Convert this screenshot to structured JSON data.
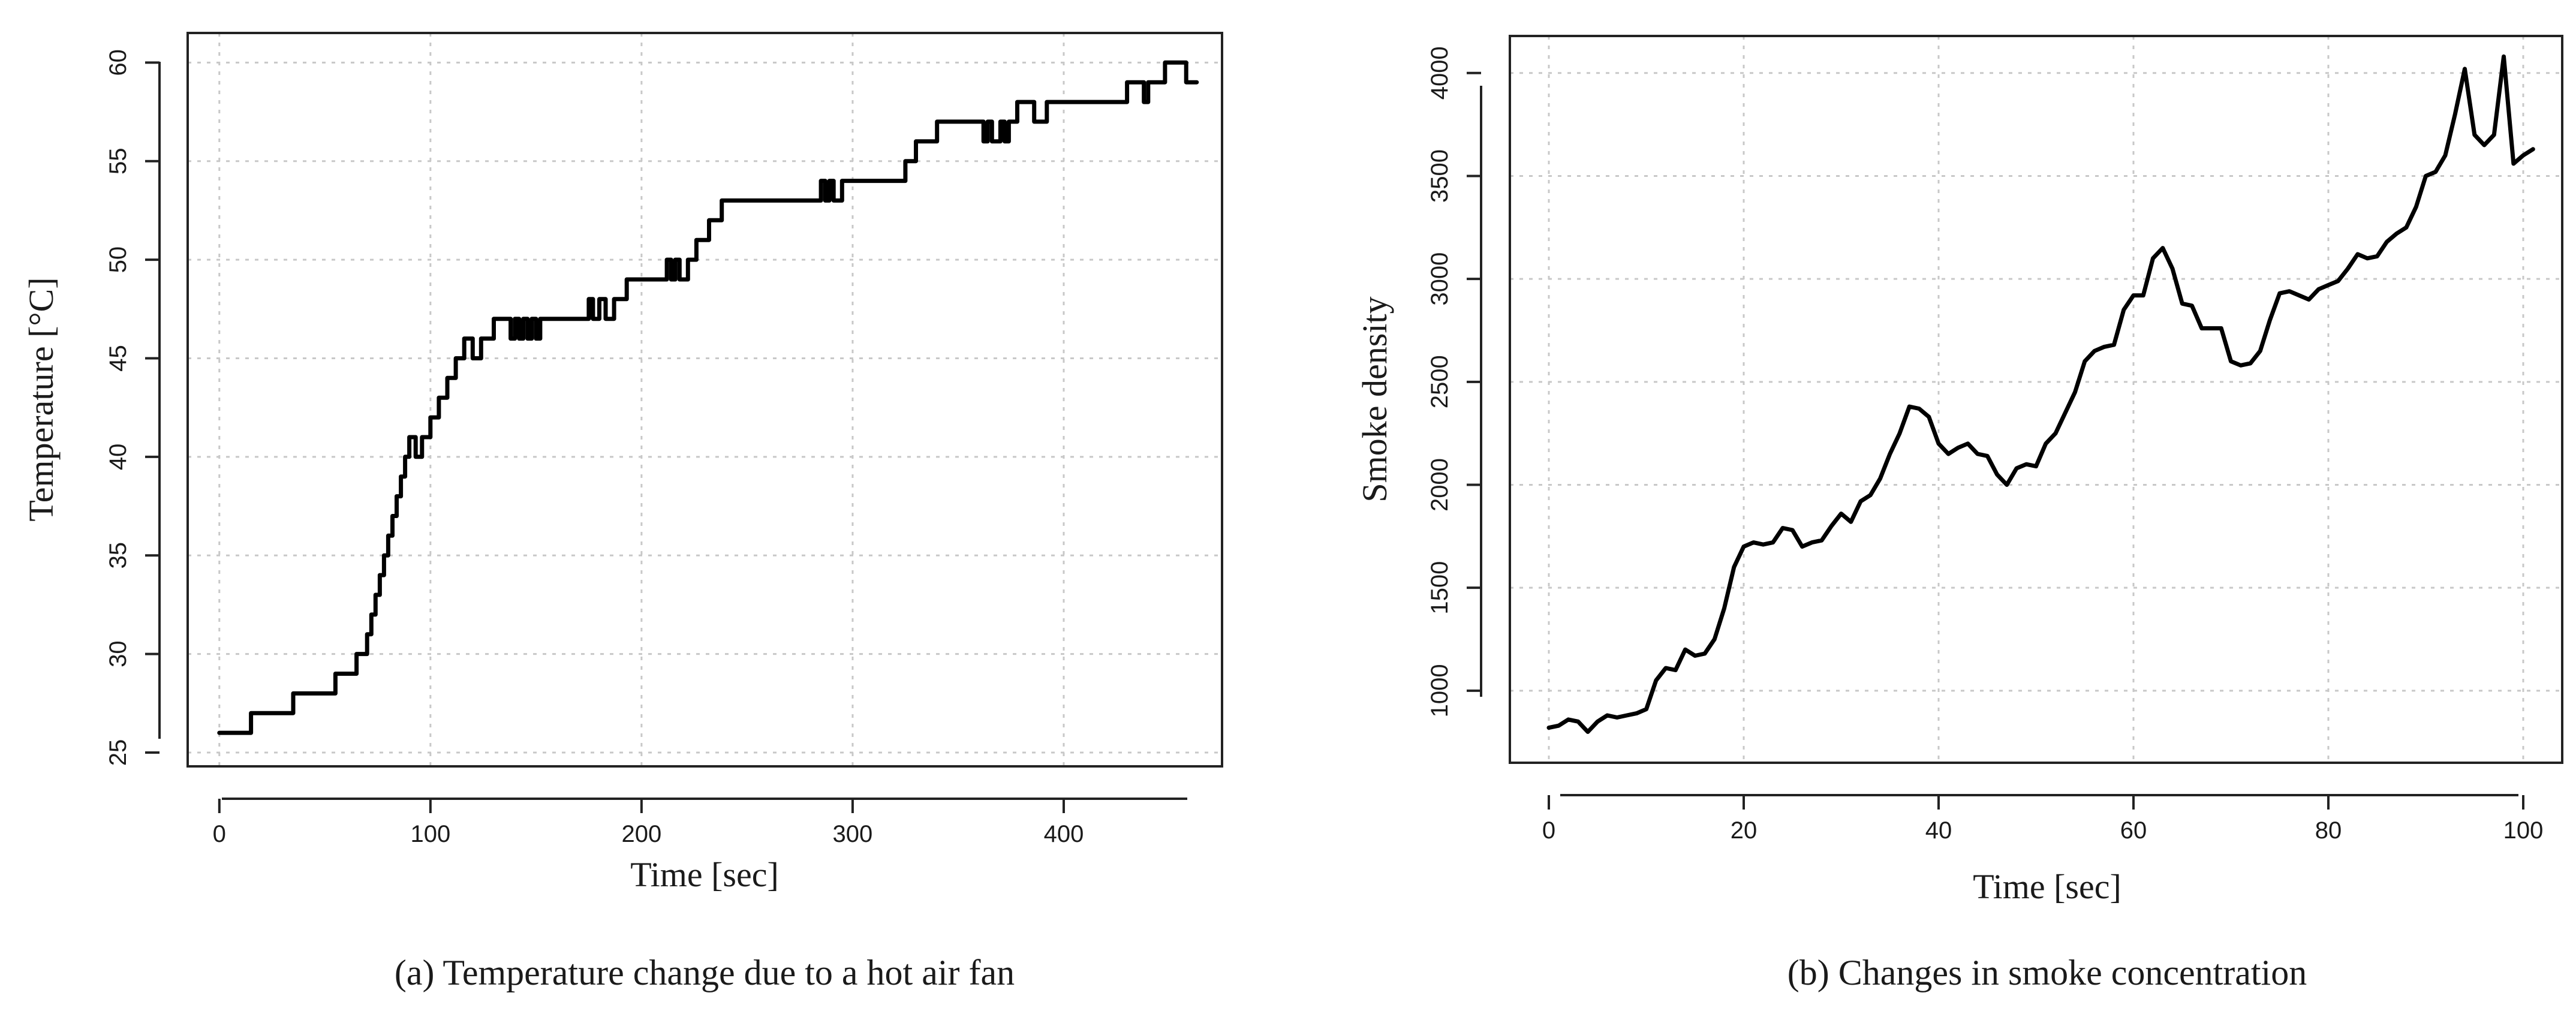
{
  "chart_data": [
    {
      "type": "line",
      "caption": "(a) Temperature change due to a hot air fan",
      "xlabel": "Time [sec]",
      "ylabel": "Temperature [°C]",
      "xlim": [
        -15,
        475
      ],
      "ylim": [
        24.3,
        61.5
      ],
      "xticks": [
        0,
        100,
        200,
        300,
        400
      ],
      "yticks": [
        25,
        30,
        35,
        40,
        45,
        50,
        55,
        60
      ],
      "grid": true,
      "step": true,
      "x": [
        0,
        15,
        35,
        55,
        65,
        70,
        72,
        74,
        76,
        78,
        80,
        82,
        84,
        86,
        88,
        90,
        93,
        96,
        100,
        104,
        108,
        112,
        116,
        120,
        124,
        130,
        138,
        140,
        142,
        144,
        146,
        148,
        150,
        152,
        156,
        175,
        177,
        180,
        183,
        187,
        193,
        212,
        214,
        216,
        218,
        222,
        226,
        232,
        238,
        255,
        285,
        287,
        289,
        291,
        295,
        320,
        325,
        330,
        340,
        362,
        364,
        366,
        370,
        372,
        374,
        378,
        386,
        392,
        397,
        400,
        430,
        438,
        440,
        442,
        448,
        458,
        463
      ],
      "values": [
        26,
        27,
        28,
        29,
        30,
        31,
        32,
        33,
        34,
        35,
        36,
        37,
        38,
        39,
        40,
        41,
        40,
        41,
        42,
        43,
        44,
        45,
        46,
        45,
        46,
        47,
        46,
        47,
        46,
        47,
        46,
        47,
        46,
        47,
        47,
        48,
        47,
        48,
        47,
        48,
        49,
        50,
        49,
        50,
        49,
        50,
        51,
        52,
        53,
        53,
        54,
        53,
        54,
        53,
        54,
        54,
        55,
        56,
        57,
        56,
        57,
        56,
        57,
        56,
        57,
        58,
        57,
        58,
        58,
        58,
        59,
        58,
        59,
        59,
        60,
        59,
        59
      ]
    },
    {
      "type": "line",
      "caption": "(b) Changes in smoke concentration",
      "xlabel": "Time [sec]",
      "ylabel": "Smoke density",
      "xlim": [
        -4,
        104
      ],
      "ylim": [
        650,
        4180
      ],
      "xticks": [
        0,
        20,
        40,
        60,
        80,
        100
      ],
      "yticks": [
        1000,
        1500,
        2000,
        2500,
        3000,
        3500,
        4000
      ],
      "grid": true,
      "step": false,
      "x": [
        0,
        1,
        2,
        3,
        4,
        5,
        6,
        7,
        8,
        9,
        10,
        11,
        12,
        13,
        14,
        15,
        16,
        17,
        18,
        19,
        20,
        21,
        22,
        23,
        24,
        25,
        26,
        27,
        28,
        29,
        30,
        31,
        32,
        33,
        34,
        35,
        36,
        37,
        38,
        39,
        40,
        41,
        42,
        43,
        44,
        45,
        46,
        47,
        48,
        49,
        50,
        51,
        52,
        53,
        54,
        55,
        56,
        57,
        58,
        59,
        60,
        61,
        62,
        63,
        64,
        65,
        66,
        67,
        68,
        69,
        70,
        71,
        72,
        73,
        74,
        75,
        76,
        77,
        78,
        79,
        80,
        81,
        82,
        83,
        84,
        85,
        86,
        87,
        88,
        89,
        90,
        91,
        92,
        93,
        94,
        95,
        96,
        97,
        98,
        99,
        100,
        101
      ],
      "values": [
        820,
        830,
        860,
        850,
        800,
        850,
        880,
        870,
        880,
        890,
        910,
        1050,
        1110,
        1100,
        1200,
        1170,
        1180,
        1250,
        1400,
        1600,
        1700,
        1720,
        1710,
        1720,
        1790,
        1780,
        1700,
        1720,
        1730,
        1800,
        1860,
        1820,
        1920,
        1950,
        2030,
        2150,
        2250,
        2380,
        2370,
        2330,
        2200,
        2150,
        2180,
        2200,
        2150,
        2140,
        2050,
        2000,
        2080,
        2100,
        2090,
        2200,
        2250,
        2350,
        2450,
        2600,
        2650,
        2670,
        2680,
        2850,
        2920,
        2920,
        3100,
        3150,
        3050,
        2880,
        2870,
        2760,
        2760,
        2760,
        2600,
        2580,
        2590,
        2650,
        2800,
        2930,
        2940,
        2920,
        2900,
        2950,
        2970,
        2990,
        3050,
        3120,
        3100,
        3110,
        3180,
        3220,
        3250,
        3350,
        3500,
        3520,
        3600,
        3800,
        4020,
        3700,
        3650,
        3700,
        4080,
        3560,
        3600,
        3630
      ]
    }
  ]
}
